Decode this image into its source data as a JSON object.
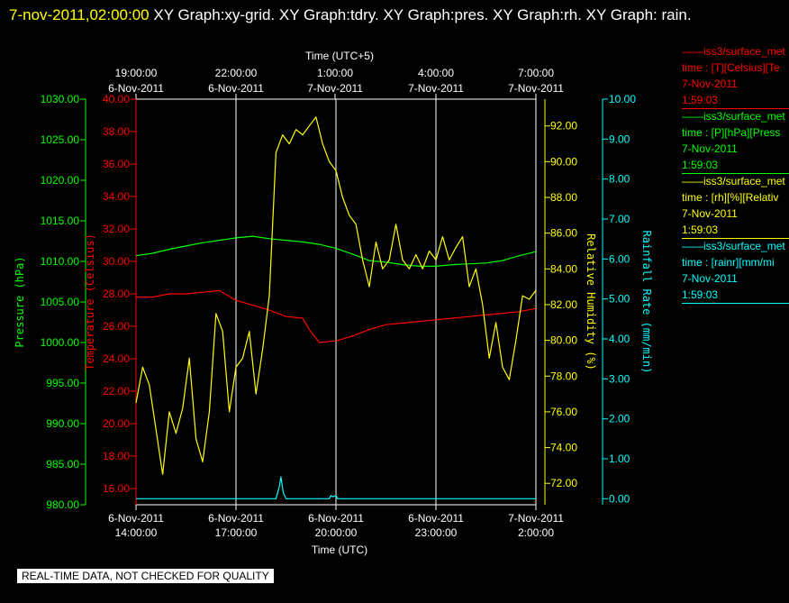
{
  "header": {
    "timestamp": "7-nov-2011,02:00:00",
    "title_rest": "  XY Graph:xy-grid.  XY Graph:tdry.  XY Graph:pres.  XY Graph:rh.  XY Graph: rain."
  },
  "warning": "REAL-TIME DATA, NOT CHECKED FOR QUALITY",
  "colors": {
    "pressure": "#00ff00",
    "temperature": "#ff0000",
    "humidity": "#ffff00",
    "rain": "#00ffff",
    "frame": "#ffffff"
  },
  "chart_data": {
    "type": "line",
    "top_axis": {
      "label": "Time (UTC+5)",
      "ticks": [
        {
          "time": "19:00:00",
          "date": "6-Nov-2011"
        },
        {
          "time": "22:00:00",
          "date": "6-Nov-2011"
        },
        {
          "time": "1:00:00",
          "date": "7-Nov-2011"
        },
        {
          "time": "4:00:00",
          "date": "7-Nov-2011"
        },
        {
          "time": "7:00:00",
          "date": "7-Nov-2011"
        }
      ]
    },
    "bottom_axis": {
      "label": "Time (UTC)",
      "range": [
        "2011-11-06 14:00",
        "2011-11-07 02:00"
      ],
      "ticks": [
        {
          "date": "6-Nov-2011",
          "time": "14:00:00"
        },
        {
          "date": "6-Nov-2011",
          "time": "17:00:00"
        },
        {
          "date": "6-Nov-2011",
          "time": "20:00:00"
        },
        {
          "date": "6-Nov-2011",
          "time": "23:00:00"
        },
        {
          "date": "7-Nov-2011",
          "time": "2:00:00"
        }
      ]
    },
    "grid": true,
    "y_axes": [
      {
        "key": "pressure",
        "label": "Pressure (hPa)",
        "range": [
          980,
          1030
        ],
        "ticks": [
          "980.00",
          "985.00",
          "990.00",
          "995.00",
          "1000.00",
          "1005.00",
          "1010.00",
          "1015.00",
          "1020.00",
          "1025.00",
          "1030.00"
        ]
      },
      {
        "key": "temperature",
        "label": "Temperature (Celsius)",
        "range": [
          15,
          40
        ],
        "ticks": [
          "16.00",
          "18.00",
          "20.00",
          "22.00",
          "24.00",
          "26.00",
          "28.00",
          "30.00",
          "32.00",
          "34.00",
          "36.00",
          "38.00",
          "40.00"
        ]
      },
      {
        "key": "humidity",
        "label": "Relative Humidity (%)",
        "range": [
          70.8,
          93.5
        ],
        "ticks": [
          "72.00",
          "74.00",
          "76.00",
          "78.00",
          "80.00",
          "82.00",
          "84.00",
          "86.00",
          "88.00",
          "90.00",
          "92.00"
        ]
      },
      {
        "key": "rain",
        "label": "Rainfall Rate (mm/min)",
        "range": [
          -0.15,
          10
        ],
        "ticks": [
          "0.00",
          "1.00",
          "2.00",
          "3.00",
          "4.00",
          "5.00",
          "6.00",
          "7.00",
          "8.00",
          "9.00",
          "10.00"
        ]
      }
    ],
    "series": [
      {
        "key": "pressure",
        "axis": "pressure",
        "x_hours": [
          0,
          0.5,
          1,
          1.5,
          2,
          2.5,
          3,
          3.5,
          4,
          4.5,
          5,
          5.5,
          6,
          6.5,
          7,
          7.5,
          8,
          8.5,
          9,
          9.5,
          10,
          10.5,
          11,
          11.5,
          12
        ],
        "values": [
          1010.7,
          1011.0,
          1011.5,
          1011.9,
          1012.3,
          1012.6,
          1012.9,
          1013.1,
          1012.8,
          1012.6,
          1012.4,
          1012.1,
          1011.6,
          1010.9,
          1010.1,
          1009.9,
          1009.6,
          1009.4,
          1009.4,
          1009.6,
          1009.7,
          1009.8,
          1010.1,
          1010.7,
          1011.2
        ]
      },
      {
        "key": "temperature",
        "axis": "temperature",
        "x_hours": [
          0,
          0.5,
          1,
          1.5,
          2,
          2.5,
          3,
          3.5,
          4,
          4.5,
          5,
          5.2,
          5.5,
          6,
          6.5,
          7,
          7.5,
          8,
          8.5,
          9,
          9.5,
          10,
          10.5,
          11,
          11.5,
          12
        ],
        "values": [
          27.8,
          27.8,
          28.0,
          28.0,
          28.1,
          28.2,
          27.6,
          27.3,
          27.0,
          26.6,
          26.5,
          25.8,
          25.0,
          25.1,
          25.4,
          25.8,
          26.1,
          26.2,
          26.3,
          26.4,
          26.5,
          26.6,
          26.7,
          26.8,
          26.9,
          27.1
        ]
      },
      {
        "key": "humidity",
        "axis": "humidity",
        "x_hours": [
          0,
          0.2,
          0.4,
          0.6,
          0.8,
          1.0,
          1.2,
          1.4,
          1.6,
          1.8,
          2.0,
          2.2,
          2.4,
          2.6,
          2.8,
          3.0,
          3.2,
          3.4,
          3.6,
          3.8,
          4.0,
          4.2,
          4.4,
          4.6,
          4.8,
          5.0,
          5.2,
          5.4,
          5.6,
          5.8,
          6.0,
          6.2,
          6.4,
          6.6,
          6.8,
          7.0,
          7.2,
          7.4,
          7.6,
          7.8,
          8.0,
          8.2,
          8.4,
          8.6,
          8.8,
          9.0,
          9.2,
          9.4,
          9.6,
          9.8,
          10.0,
          10.2,
          10.4,
          10.6,
          10.8,
          11.0,
          11.2,
          11.4,
          11.6,
          11.8,
          12.0
        ],
        "values": [
          76.5,
          78.5,
          77.5,
          75.0,
          72.5,
          76.0,
          74.8,
          76.2,
          79.0,
          74.5,
          73.2,
          76.0,
          81.5,
          80.5,
          76.0,
          78.5,
          79.0,
          80.5,
          77.0,
          79.5,
          82.5,
          90.5,
          91.5,
          91.0,
          91.8,
          91.5,
          92.0,
          92.5,
          91.0,
          90.0,
          89.5,
          88.0,
          87.0,
          86.5,
          84.5,
          83.0,
          85.5,
          84.0,
          84.5,
          86.5,
          84.5,
          84.0,
          84.8,
          84.0,
          85.0,
          84.5,
          85.8,
          84.5,
          85.2,
          85.8,
          83.0,
          84.0,
          82.0,
          79.0,
          81.0,
          78.5,
          77.8,
          80.0,
          82.5,
          82.3,
          82.8
        ]
      },
      {
        "key": "rain",
        "axis": "rain",
        "x_hours": [
          0,
          4.2,
          4.3,
          4.35,
          4.42,
          4.5,
          4.6,
          5.8,
          5.85,
          5.9,
          6.0,
          6.05,
          12
        ],
        "values": [
          0,
          0,
          0.3,
          0.55,
          0.15,
          0,
          0,
          0,
          0.08,
          0.05,
          0.08,
          0,
          0
        ]
      }
    ]
  },
  "legend": [
    {
      "key": "temperature",
      "name": "iss3/surface_met",
      "units": "time : [T][Celsius][Te",
      "date": "7-Nov-2011",
      "time": "1:59:03"
    },
    {
      "key": "pressure",
      "name": "iss3/surface_met",
      "units": "time : [P][hPa][Press",
      "date": "7-Nov-2011",
      "time": "1:59:03"
    },
    {
      "key": "humidity",
      "name": "iss3/surface_met",
      "units": "time : [rh][%][Relativ",
      "date": "7-Nov-2011",
      "time": "1:59:03"
    },
    {
      "key": "rain",
      "name": "iss3/surface_met",
      "units": "time : [rainr][mm/mi",
      "date": "7-Nov-2011",
      "time": "1:59:03"
    }
  ]
}
